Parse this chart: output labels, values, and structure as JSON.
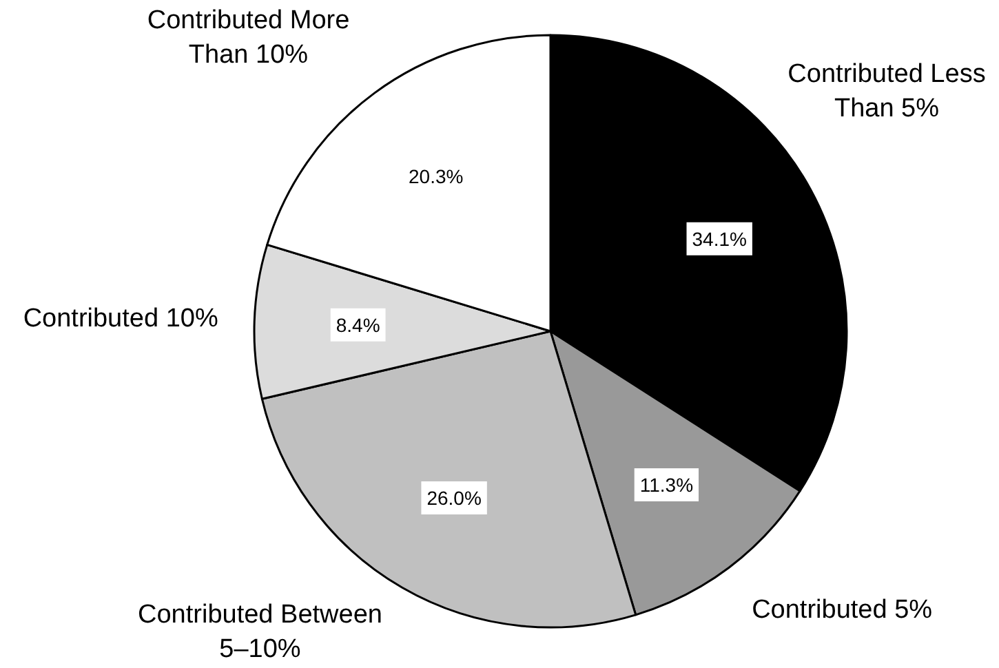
{
  "chart_data": {
    "type": "pie",
    "categories": [
      "Contributed Less Than 5%",
      "Contributed 5%",
      "Contributed Between 5–10%",
      "Contributed 10%",
      "Contributed More Than 10%"
    ],
    "values": [
      34.1,
      11.3,
      26.0,
      8.4,
      20.3
    ],
    "colors": [
      "#000000",
      "#999999",
      "#c0c0c0",
      "#dcdcdc",
      "#ffffff"
    ],
    "value_labels": [
      "34.1%",
      "11.3%",
      "26.0%",
      "8.4%",
      "20.3%"
    ]
  }
}
